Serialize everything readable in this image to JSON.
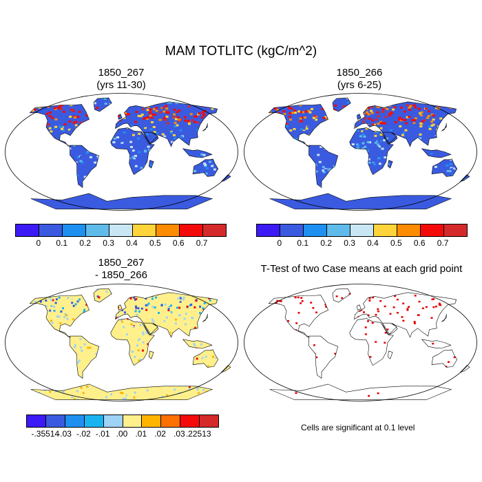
{
  "title": "MAM TOTLITC (kgC/m^2)",
  "panels": {
    "top_left": {
      "line1": "1850_267",
      "line2": "(yrs 11-30)"
    },
    "top_right": {
      "line1": "1850_266",
      "line2": "(yrs 6-25)"
    },
    "bottom_left": {
      "line1": "1850_267",
      "line2": "- 1850_266"
    },
    "bottom_right": {
      "line1": "T-Test of two Case means at each grid point"
    }
  },
  "colorbar_top": {
    "colors": [
      "#3b1af5",
      "#3a5be0",
      "#1f8ff0",
      "#5fbcea",
      "#c8e6f4",
      "#ffd43a",
      "#ff8c00",
      "#f50a0a",
      "#d42a2a"
    ],
    "labels": [
      "0",
      "0.1",
      "0.2",
      "0.3",
      "0.4",
      "0.5",
      "0.6",
      "0.7"
    ]
  },
  "colorbar_bottom": {
    "colors": [
      "#3b1af5",
      "#3a5be0",
      "#1f8ff0",
      "#19b4f0",
      "#9fd3f5",
      "#fff08c",
      "#ffb400",
      "#ff7000",
      "#f50a0a",
      "#d42a2a"
    ],
    "labels": [
      "-.35514",
      "-.03",
      "-.02",
      "-.01",
      ".00",
      ".01",
      ".02",
      ".03",
      ".22513"
    ]
  },
  "significance_note": "Cells are significant at 0.1 level",
  "colors": {
    "ocean": "#ffffff",
    "land_outline": "#000000",
    "significant": "#e60000"
  }
}
